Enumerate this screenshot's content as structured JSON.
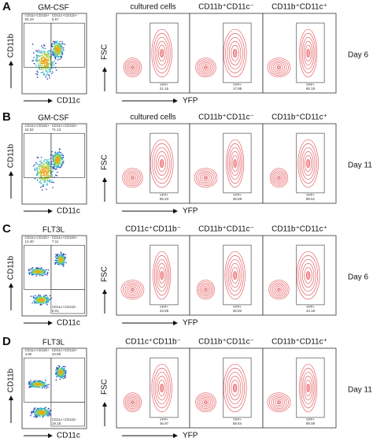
{
  "panels": [
    {
      "letter": "A",
      "condition": "GM-CSF",
      "y_axis": "CD11b",
      "x_axis": "CD11c",
      "gates": [
        {
          "name": "CD11c-CD11b+",
          "value": "83.43"
        },
        {
          "name": "CD11c+CD11b+",
          "value": "6.57"
        }
      ],
      "fsc_axis": "FSC",
      "yfp_axis": "YFP",
      "populations": [
        {
          "title": "cultured cells",
          "gate": "YFP+",
          "value": "21.15"
        },
        {
          "title": "CD11b⁺CD11c⁻",
          "gate": "YFP+",
          "value": "17.85"
        },
        {
          "title": "CD11b⁺CD11c⁺",
          "gate": "YFP+",
          "value": "50.19"
        }
      ],
      "day": "Day 6"
    },
    {
      "letter": "B",
      "condition": "GM-CSF",
      "y_axis": "CD11b",
      "x_axis": "CD11c",
      "gates": [
        {
          "name": "CD11c-CD11b+",
          "value": "24.52"
        },
        {
          "name": "CD11c+CD11b+",
          "value": "71.13"
        }
      ],
      "fsc_axis": "FSC",
      "yfp_axis": "YFP",
      "populations": [
        {
          "title": "cultured cells",
          "gate": "YFP+",
          "value": "95.34"
        },
        {
          "title": "CD11b⁺CD11c⁻",
          "gate": "YFP+",
          "value": "35.69"
        },
        {
          "title": "CD11b⁺CD11c⁺",
          "gate": "YFP+",
          "value": "88.61"
        }
      ],
      "day": "Day 11"
    },
    {
      "letter": "C",
      "condition": "FLT3L",
      "y_axis": "CD11b",
      "x_axis": "CD11c",
      "gates": [
        {
          "name": "CD11c-CD11b+",
          "value": "12.40"
        },
        {
          "name": "CD11c+CD11b+",
          "value": "7.11"
        },
        {
          "name": "CD11c+CD11b-",
          "value": "5.01"
        }
      ],
      "fsc_axis": "FSC",
      "yfp_axis": "YFP",
      "populations": [
        {
          "title": "CD11c⁺CD11b⁻",
          "gate": "YFP+",
          "value": "23.95"
        },
        {
          "title": "CD11b⁺CD11c⁻",
          "gate": "YFP+",
          "value": "36.82"
        },
        {
          "title": "CD11b⁺CD11c⁺",
          "gate": "YFP+",
          "value": "44.18"
        }
      ],
      "day": "Day 6"
    },
    {
      "letter": "D",
      "condition": "FLT3L",
      "y_axis": "CD11b",
      "x_axis": "CD11c",
      "gates": [
        {
          "name": "CD11c-CD11b+",
          "value": "4.90"
        },
        {
          "name": "CD11c+CD11b+",
          "value": "34.89"
        },
        {
          "name": "CD11c+CD11b-",
          "value": "19.18"
        }
      ],
      "fsc_axis": "FSC",
      "yfp_axis": "YFP",
      "populations": [
        {
          "title": "CD11c⁺CD11b⁻",
          "gate": "YFP+",
          "value": "36.97"
        },
        {
          "title": "CD11b⁺CD11c⁻",
          "gate": "YFP+",
          "value": "58.64"
        },
        {
          "title": "CD11b⁺CD11c⁺",
          "gate": "YFP+",
          "value": "99.09"
        }
      ],
      "day": "Day 11"
    }
  ]
}
